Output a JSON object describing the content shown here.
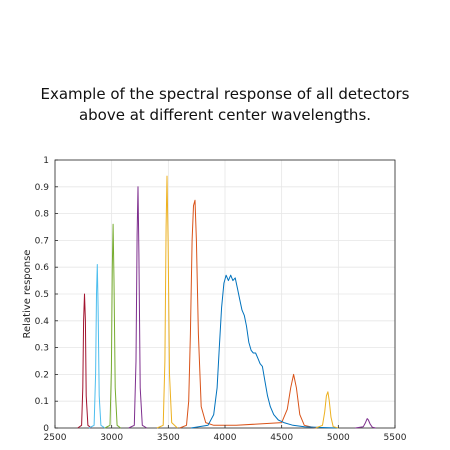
{
  "caption": {
    "line1": "Example of the spectral response of all detectors",
    "line2": "above at different center wavelengths."
  },
  "chart_data": {
    "type": "line",
    "title": "",
    "xlabel": "",
    "ylabel": "Relative response",
    "xlim": [
      2500,
      5500
    ],
    "ylim": [
      0,
      1
    ],
    "xticks": [
      2500,
      3000,
      3500,
      4000,
      4500,
      5000,
      5500
    ],
    "yticks": [
      0,
      0.1,
      0.2,
      0.3,
      0.4,
      0.5,
      0.6,
      0.7,
      0.8,
      0.9,
      1
    ],
    "ytick_labels": [
      "0",
      "0.1",
      "0.2",
      "0.3",
      "0.4",
      "0.5",
      "0.6",
      "0.7",
      "0.8",
      "0.9",
      "1"
    ],
    "grid": true,
    "legend": "none",
    "series": [
      {
        "color": "#a2142f",
        "x": [
          2700,
          2735,
          2745,
          2752,
          2760,
          2768,
          2775,
          2790,
          2820
        ],
        "y": [
          0,
          0.01,
          0.15,
          0.4,
          0.5,
          0.4,
          0.12,
          0.01,
          0
        ]
      },
      {
        "color": "#4dbeee",
        "x": [
          2800,
          2845,
          2858,
          2866,
          2873,
          2880,
          2890,
          2905,
          2940
        ],
        "y": [
          0,
          0.01,
          0.2,
          0.5,
          0.61,
          0.45,
          0.12,
          0.01,
          0
        ]
      },
      {
        "color": "#77ac30",
        "x": [
          2940,
          2985,
          2998,
          3006,
          3013,
          3021,
          3031,
          3048,
          3080
        ],
        "y": [
          0,
          0.01,
          0.22,
          0.6,
          0.76,
          0.55,
          0.15,
          0.01,
          0
        ]
      },
      {
        "color": "#7e2f8e",
        "x": [
          3150,
          3200,
          3215,
          3224,
          3232,
          3240,
          3252,
          3270,
          3310
        ],
        "y": [
          0,
          0.01,
          0.25,
          0.72,
          0.9,
          0.65,
          0.15,
          0.01,
          0
        ]
      },
      {
        "color": "#edb120",
        "x": [
          3400,
          3455,
          3470,
          3480,
          3488,
          3498,
          3510,
          3530,
          3580
        ],
        "y": [
          0,
          0.01,
          0.25,
          0.75,
          0.94,
          0.7,
          0.2,
          0.02,
          0
        ]
      },
      {
        "color": "#d95319",
        "x": [
          3600,
          3660,
          3680,
          3695,
          3710,
          3722,
          3735,
          3748,
          3765,
          3790,
          3830,
          3900,
          4100,
          4500,
          4550,
          4580,
          4605,
          4630,
          4660,
          4700,
          4800
        ],
        "y": [
          0,
          0.01,
          0.1,
          0.35,
          0.7,
          0.83,
          0.85,
          0.7,
          0.35,
          0.08,
          0.02,
          0.01,
          0.01,
          0.02,
          0.07,
          0.15,
          0.2,
          0.15,
          0.05,
          0.01,
          0
        ]
      },
      {
        "color": "#0072bd",
        "x": [
          3700,
          3850,
          3900,
          3930,
          3950,
          3970,
          3990,
          4010,
          4030,
          4050,
          4070,
          4090,
          4110,
          4130,
          4150,
          4170,
          4190,
          4210,
          4230,
          4250,
          4270,
          4290,
          4310,
          4330,
          4350,
          4375,
          4400,
          4430,
          4470,
          4520,
          4600,
          4700,
          4850,
          5000
        ],
        "y": [
          0,
          0.01,
          0.05,
          0.15,
          0.3,
          0.45,
          0.54,
          0.57,
          0.55,
          0.57,
          0.55,
          0.56,
          0.52,
          0.48,
          0.44,
          0.42,
          0.38,
          0.32,
          0.29,
          0.28,
          0.28,
          0.26,
          0.24,
          0.23,
          0.18,
          0.12,
          0.08,
          0.05,
          0.03,
          0.02,
          0.01,
          0.005,
          0.002,
          0
        ]
      },
      {
        "color": "#edb120",
        "x": [
          4800,
          4860,
          4880,
          4895,
          4908,
          4920,
          4935,
          4955,
          5000
        ],
        "y": [
          0,
          0.01,
          0.06,
          0.12,
          0.135,
          0.1,
          0.04,
          0.005,
          0
        ]
      },
      {
        "color": "#7e2f8e",
        "x": [
          5150,
          5220,
          5240,
          5255,
          5265,
          5280,
          5300,
          5330
        ],
        "y": [
          0,
          0.005,
          0.02,
          0.035,
          0.03,
          0.015,
          0.003,
          0
        ]
      }
    ]
  }
}
